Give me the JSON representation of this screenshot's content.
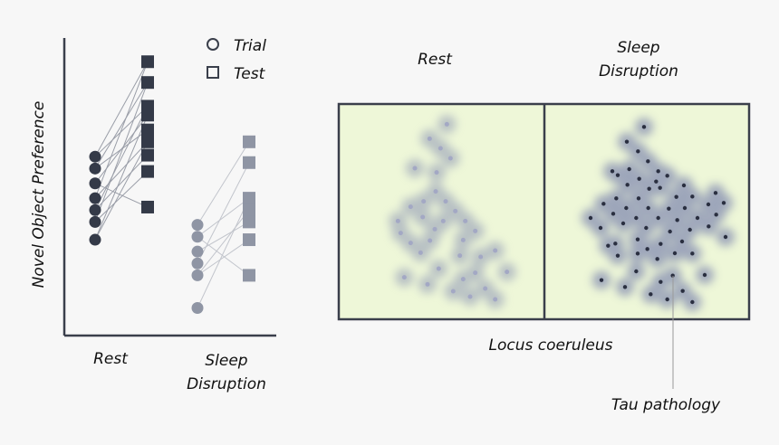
{
  "chart_data": {
    "type": "scatter",
    "ylabel": "Novel Object Preference",
    "categories": [
      "Rest",
      "Sleep Disruption"
    ],
    "category_lines": [
      [
        "Rest"
      ],
      [
        "Sleep",
        "Disruption"
      ]
    ],
    "legend": {
      "trial": "Trial",
      "test": "Test",
      "placement": "top-right"
    },
    "grid": false,
    "ylim": [
      0,
      10
    ],
    "series": [
      {
        "group": "Rest",
        "phase": "Trial",
        "values": [
          6.0,
          5.6,
          5.1,
          4.6,
          4.2,
          3.8,
          3.2
        ],
        "color": "#343a48"
      },
      {
        "group": "Rest",
        "phase": "Test",
        "values": [
          9.2,
          8.5,
          7.7,
          7.4,
          6.9,
          6.5,
          6.05,
          5.5,
          4.3
        ],
        "color": "#343a48"
      },
      {
        "group": "Sleep Disruption",
        "phase": "Trial",
        "values": [
          3.7,
          3.3,
          2.8,
          2.4,
          2.0,
          0.9
        ],
        "color": "#8f95a4"
      },
      {
        "group": "Sleep Disruption",
        "phase": "Test",
        "values": [
          6.5,
          5.8,
          4.6,
          4.2,
          3.8,
          3.2,
          2.0
        ],
        "color": "#8f95a4"
      }
    ],
    "pairs": {
      "Rest": [
        [
          0,
          0
        ],
        [
          0,
          2
        ],
        [
          1,
          1
        ],
        [
          1,
          4
        ],
        [
          2,
          3
        ],
        [
          2,
          8
        ],
        [
          3,
          0
        ],
        [
          3,
          5
        ],
        [
          4,
          2
        ],
        [
          4,
          6
        ],
        [
          5,
          1
        ],
        [
          5,
          7
        ],
        [
          6,
          3
        ],
        [
          6,
          5
        ]
      ],
      "Sleep Disruption": [
        [
          0,
          0
        ],
        [
          1,
          2
        ],
        [
          1,
          6
        ],
        [
          2,
          4
        ],
        [
          3,
          1
        ],
        [
          4,
          3
        ],
        [
          4,
          5
        ],
        [
          5,
          2
        ]
      ]
    }
  },
  "diagram": {
    "panel_labels": {
      "rest": "Rest",
      "sleep_line1": "Sleep",
      "sleep_line2": "Disruption"
    },
    "region_label": "Locus coeruleus",
    "callout": "Tau pathology",
    "panel_fill": "#eef7d8",
    "border_color": "#3a3f4b",
    "halo_color": "#8a93b3",
    "tau_dot_color": "#2a2f40"
  }
}
